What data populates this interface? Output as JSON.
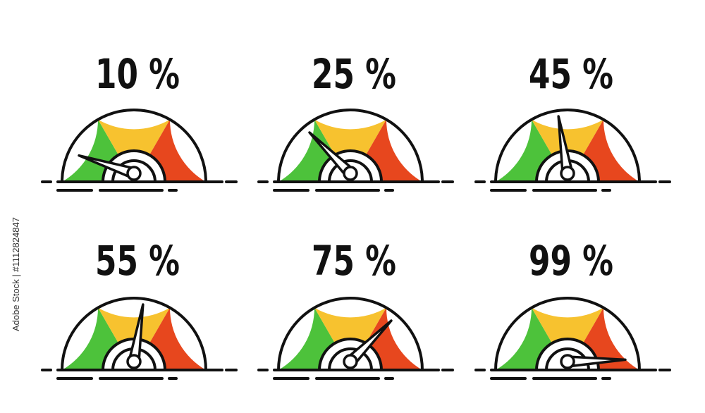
{
  "watermark": "Adobe Stock | #1112824847",
  "chart_data": [
    {
      "type": "gauge",
      "values": [
        10
      ],
      "value_labels": [
        "10 %"
      ],
      "ylim": [
        0,
        100
      ]
    },
    {
      "type": "gauge",
      "values": [
        25
      ],
      "value_labels": [
        "25 %"
      ],
      "ylim": [
        0,
        100
      ]
    },
    {
      "type": "gauge",
      "values": [
        45
      ],
      "value_labels": [
        "45 %"
      ],
      "ylim": [
        0,
        100
      ]
    },
    {
      "type": "gauge",
      "values": [
        55
      ],
      "value_labels": [
        "55 %"
      ],
      "ylim": [
        0,
        100
      ]
    },
    {
      "type": "gauge",
      "values": [
        75
      ],
      "value_labels": [
        "75 %"
      ],
      "ylim": [
        0,
        100
      ]
    },
    {
      "type": "gauge",
      "values": [
        99
      ],
      "value_labels": [
        "99 %"
      ],
      "ylim": [
        0,
        100
      ]
    }
  ]
}
